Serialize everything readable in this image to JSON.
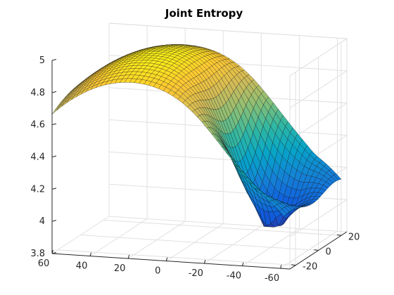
{
  "chart_data": {
    "type": "surface",
    "title": "Joint Entropy",
    "xlabel": "",
    "ylabel": "",
    "zlabel": "",
    "x_ticks": [
      60,
      40,
      20,
      0,
      -20,
      -40,
      -60
    ],
    "x_tick_labels": [
      "60",
      "40",
      "20",
      "0",
      "-20",
      "-40",
      "-60"
    ],
    "y_ticks": [
      -20,
      0,
      20
    ],
    "y_tick_labels": [
      "-20",
      "0",
      "20"
    ],
    "z_ticks": [
      3.8,
      4,
      4.2,
      4.4,
      4.6,
      4.8,
      5
    ],
    "z_tick_labels": [
      "3.8",
      "4",
      "4.2",
      "4.4",
      "4.6",
      "4.8",
      "5"
    ],
    "xlim": [
      -65,
      60
    ],
    "ylim": [
      -25,
      25
    ],
    "zlim": [
      3.8,
      5.0
    ],
    "colormap": "parula",
    "colormap_stops": [
      "#352a87",
      "#0f5cdd",
      "#1481d6",
      "#06a4ca",
      "#2eb7a4",
      "#87bf77",
      "#d1bb59",
      "#fec832",
      "#f9fb0e"
    ],
    "grid": true,
    "surface_extent": {
      "x": [
        -62,
        60
      ],
      "y": [
        -25,
        25
      ]
    },
    "minimum": {
      "x": -42,
      "y": -2,
      "z": 3.95
    },
    "peak_region": {
      "x": 15,
      "y": 5,
      "z": 4.98
    },
    "sample_profile_y0": [
      {
        "x": 60,
        "z": 4.74
      },
      {
        "x": 40,
        "z": 4.92
      },
      {
        "x": 20,
        "z": 4.97
      },
      {
        "x": 0,
        "z": 4.86
      },
      {
        "x": -20,
        "z": 4.6
      },
      {
        "x": -35,
        "z": 4.25
      },
      {
        "x": -42,
        "z": 3.95
      },
      {
        "x": -50,
        "z": 4.3
      },
      {
        "x": -60,
        "z": 4.72
      }
    ]
  }
}
